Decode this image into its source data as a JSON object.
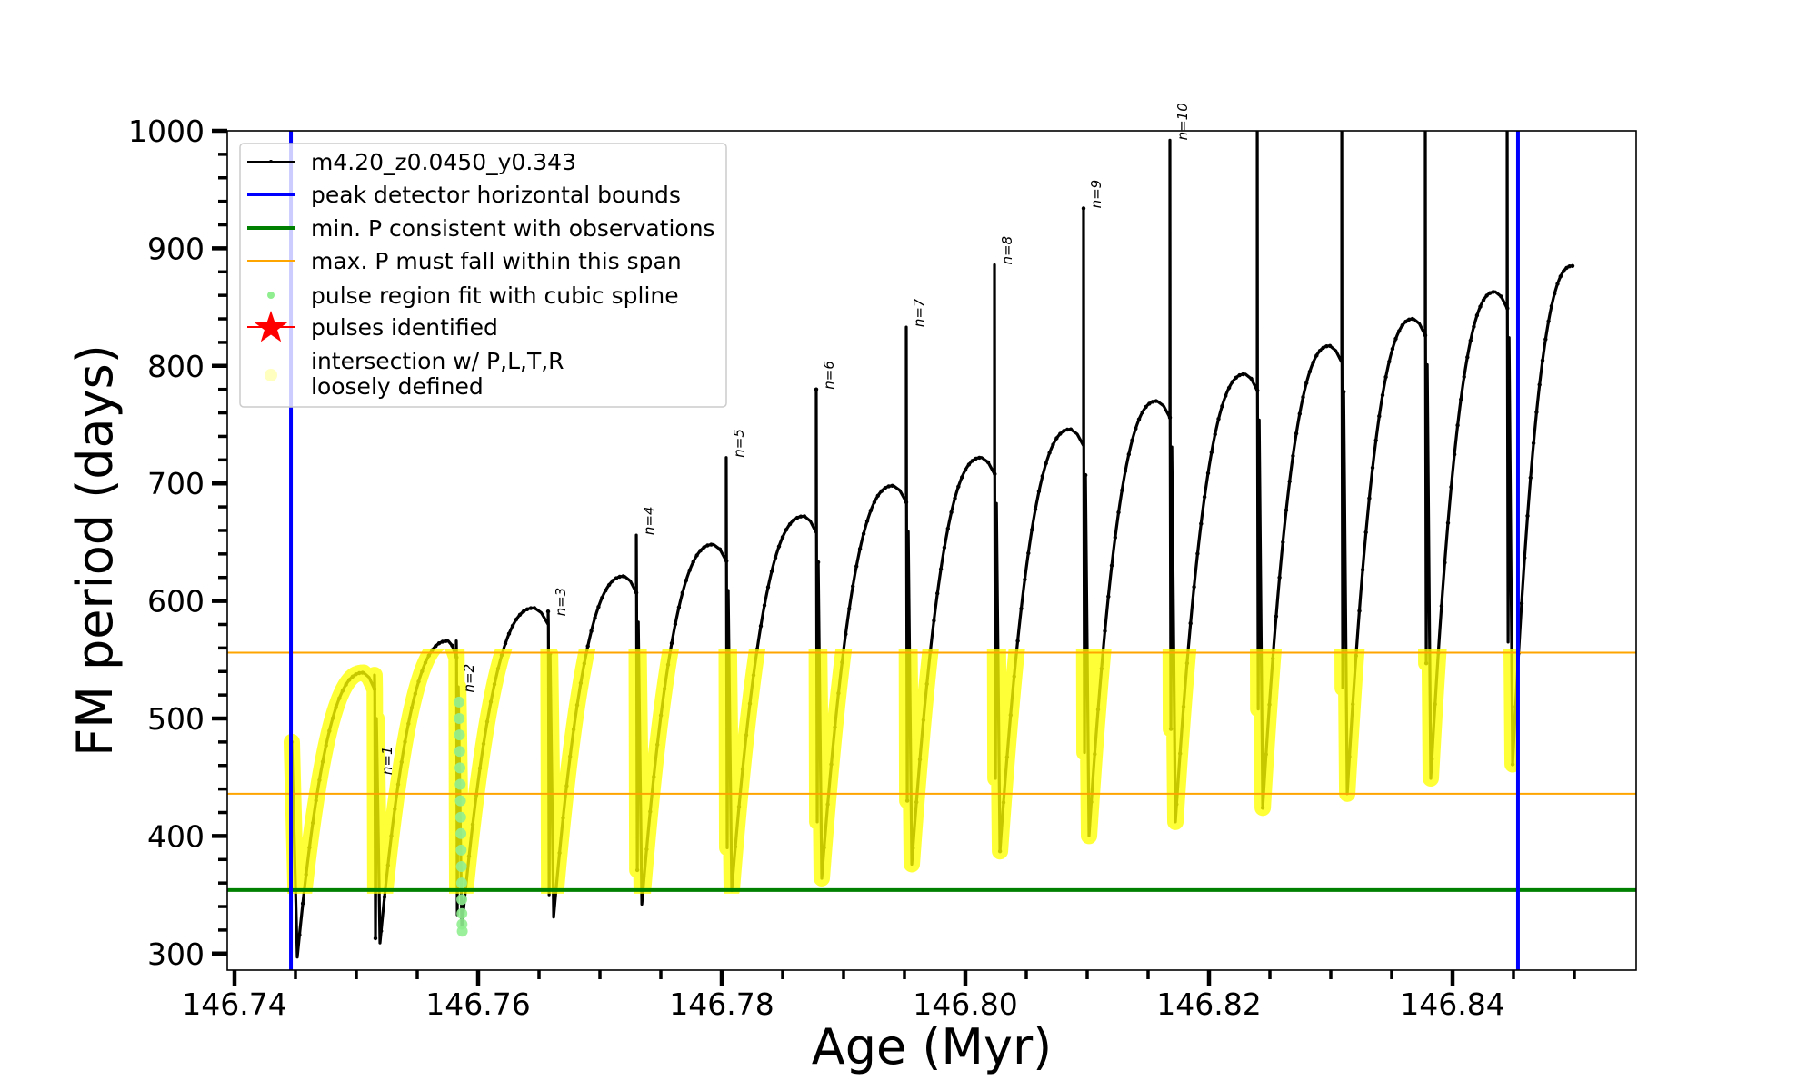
{
  "chart_data": {
    "type": "line",
    "title": "",
    "xlabel": "Age (Myr)",
    "ylabel": "FM period (days)",
    "xlim": [
      146.7394,
      146.8551
    ],
    "ylim": [
      286,
      1000
    ],
    "grid": false,
    "legend_position": "top-left",
    "xticks": [
      "146.74",
      "146.76",
      "146.78",
      "146.80",
      "146.82",
      "146.84"
    ],
    "xtick_values": [
      146.74,
      146.76,
      146.78,
      146.8,
      146.82,
      146.84
    ],
    "x_minor_step": 0.005,
    "yticks": [
      "300",
      "400",
      "500",
      "600",
      "700",
      "800",
      "900",
      "1000"
    ],
    "ytick_values": [
      300,
      400,
      500,
      600,
      700,
      800,
      900,
      1000
    ],
    "y_minor_step": 20,
    "colors": {
      "model": "#000000",
      "bounds": "#0000ff",
      "min_p": "#008000",
      "max_p_span": "#ffa500",
      "spline": "#90ee90",
      "pulses": "#ff0000",
      "intersection": "#ffff00"
    },
    "legend": [
      {
        "label": "m4.20_z0.0450_y0.343",
        "kind": "line-dot"
      },
      {
        "label": "peak detector horizontal bounds",
        "kind": "thick-line-blue"
      },
      {
        "label": "min. P consistent with observations",
        "kind": "thick-line-green"
      },
      {
        "label": "max. P must fall within this span",
        "kind": "thin-line-orange"
      },
      {
        "label": "pulse region fit with cubic spline",
        "kind": "dot-lightgreen"
      },
      {
        "label": "pulses identified",
        "kind": "star-red"
      },
      {
        "label": "intersection w/ P,L,T,R",
        "label2": "loosely defined",
        "kind": "circle-yellow"
      }
    ],
    "vertical_lines": {
      "name": "peak detector horizontal bounds",
      "ages": [
        146.74463,
        146.84537
      ]
    },
    "min_period_line": {
      "name": "min. P consistent with observations",
      "period": 354
    },
    "max_period_span": {
      "name": "max. P must fall within this span",
      "periods": [
        436,
        556
      ]
    },
    "intersection_band": {
      "period_range": [
        354,
        556
      ],
      "age_range": [
        146.74463,
        146.84537
      ]
    },
    "model_curve": {
      "name": "m4.20_z0.0450_y0.343",
      "start": {
        "age": 146.7447,
        "period": 480
      },
      "first_min": {
        "age": 146.74515,
        "period": 297
      },
      "pulses": [
        {
          "label": "n=1",
          "age": 146.75149,
          "peak_age": 146.7506,
          "peak_period": 539,
          "spike_top": 537,
          "left_min": 313,
          "right_min": 309,
          "label_period": 452
        },
        {
          "label": "n=2",
          "age": 146.75821,
          "peak_age": 146.75754,
          "peak_period": 566,
          "spike_top": 566,
          "left_min": 333,
          "right_min": 322,
          "label_period": 522
        },
        {
          "label": "n=3",
          "age": 146.76575,
          "peak_age": 146.76463,
          "peak_period": 594,
          "spike_top": 591,
          "left_min": 350,
          "right_min": 331,
          "label_period": 587
        },
        {
          "label": "n=4",
          "age": 146.77299,
          "peak_age": 146.77201,
          "peak_period": 621,
          "spike_top": 656,
          "left_min": 371,
          "right_min": 342,
          "label_period": 656
        },
        {
          "label": "n=5",
          "age": 146.78037,
          "peak_age": 146.77933,
          "peak_period": 648,
          "spike_top": 722,
          "left_min": 390,
          "right_min": 354,
          "label_period": 722
        },
        {
          "label": "n=6",
          "age": 146.78776,
          "peak_age": 146.78679,
          "peak_period": 672,
          "spike_top": 780,
          "left_min": 412,
          "right_min": 364,
          "label_period": 780
        },
        {
          "label": "n=7",
          "age": 146.79515,
          "peak_age": 146.7941,
          "peak_period": 698,
          "spike_top": 833,
          "left_min": 430,
          "right_min": 376,
          "label_period": 833
        },
        {
          "label": "n=8",
          "age": 146.80239,
          "peak_age": 146.80134,
          "peak_period": 722,
          "spike_top": 886,
          "left_min": 449,
          "right_min": 387,
          "label_period": 886
        },
        {
          "label": "n=9",
          "age": 146.8097,
          "peak_age": 146.80866,
          "peak_period": 746,
          "spike_top": 934,
          "left_min": 471,
          "right_min": 400,
          "label_period": 934
        },
        {
          "label": "n=10",
          "age": 146.81679,
          "peak_age": 146.81575,
          "peak_period": 770,
          "spike_top": 992,
          "left_min": 491,
          "right_min": 412,
          "label_period": 992
        },
        {
          "age": 146.82396,
          "peak_age": 146.82299,
          "peak_period": 793,
          "spike_top": null,
          "left_min": 508,
          "right_min": 424
        },
        {
          "age": 146.8309,
          "peak_age": 146.82993,
          "peak_period": 817,
          "spike_top": null,
          "left_min": 526,
          "right_min": 436
        },
        {
          "age": 146.83776,
          "peak_age": 146.83679,
          "peak_period": 840,
          "spike_top": null,
          "left_min": 547,
          "right_min": 449
        },
        {
          "age": 146.84448,
          "peak_age": 146.84351,
          "peak_period": 863,
          "spike_top": null,
          "left_min": 565,
          "right_min": 461
        }
      ],
      "end": {
        "age": 146.84985,
        "period": 885
      }
    },
    "spline_points": {
      "name": "pulse region fit with cubic spline",
      "ages": [
        146.75843,
        146.75845,
        146.75847,
        146.75849,
        146.75851,
        146.75853,
        146.75855,
        146.75857,
        146.75859,
        146.75861,
        146.75863,
        146.75865,
        146.75866,
        146.75867,
        146.75868,
        146.7587
      ],
      "periods": [
        514,
        500,
        486,
        472,
        458,
        444,
        430,
        416,
        402,
        388,
        374,
        360,
        346,
        334,
        325,
        319
      ]
    }
  }
}
